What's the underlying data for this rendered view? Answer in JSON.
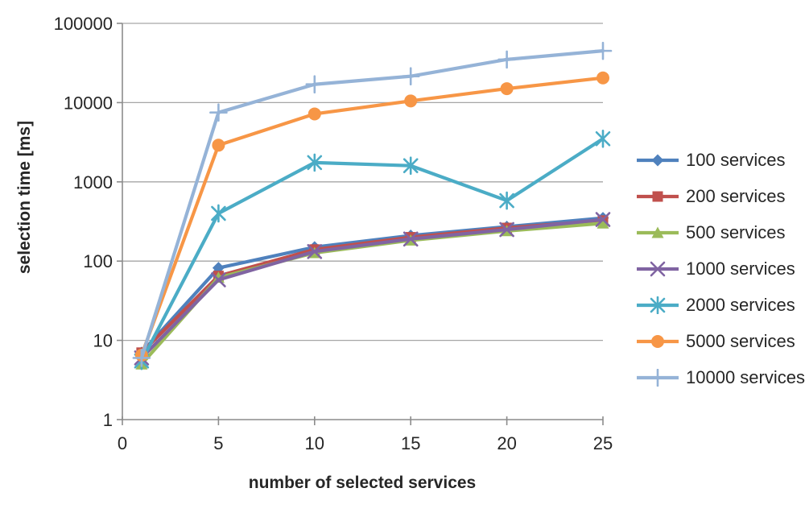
{
  "chart_data": {
    "type": "line",
    "title": "",
    "xlabel": "number of selected services",
    "ylabel": "selection time [ms]",
    "x": [
      1,
      5,
      10,
      15,
      20,
      25
    ],
    "x_ticks": [
      0,
      5,
      10,
      15,
      20,
      25
    ],
    "xlim": [
      0,
      25
    ],
    "y_scale": "log10",
    "y_ticks": [
      1,
      10,
      100,
      1000,
      10000,
      100000
    ],
    "ylim": [
      1,
      100000
    ],
    "grid": "horizontal",
    "legend_position": "right",
    "series": [
      {
        "name": "100 services",
        "color": "#4F81BD",
        "marker": "diamond",
        "values": [
          7,
          82,
          150,
          210,
          272,
          350
        ]
      },
      {
        "name": "200 services",
        "color": "#C0504D",
        "marker": "square",
        "values": [
          7,
          65,
          140,
          200,
          262,
          325
        ]
      },
      {
        "name": "500 services",
        "color": "#9BBB59",
        "marker": "triangle",
        "values": [
          5,
          62,
          127,
          183,
          240,
          300
        ]
      },
      {
        "name": "1000 services",
        "color": "#8064A2",
        "marker": "x",
        "values": [
          6,
          58,
          132,
          190,
          250,
          335
        ]
      },
      {
        "name": "2000 services",
        "color": "#4BACC6",
        "marker": "asterisk",
        "values": [
          5.5,
          400,
          1750,
          1600,
          580,
          3500
        ]
      },
      {
        "name": "5000 services",
        "color": "#F79646",
        "marker": "circle",
        "values": [
          6.5,
          2900,
          7200,
          10500,
          15000,
          20500
        ]
      },
      {
        "name": "10000 services",
        "color": "#95B3D7",
        "marker": "plus",
        "values": [
          6,
          7500,
          17000,
          21500,
          35000,
          45000
        ]
      }
    ]
  },
  "colors": {
    "background": "#FFFFFF",
    "gridline": "#A6A6A6",
    "axis": "#8C8C8C",
    "text": "#262626"
  }
}
